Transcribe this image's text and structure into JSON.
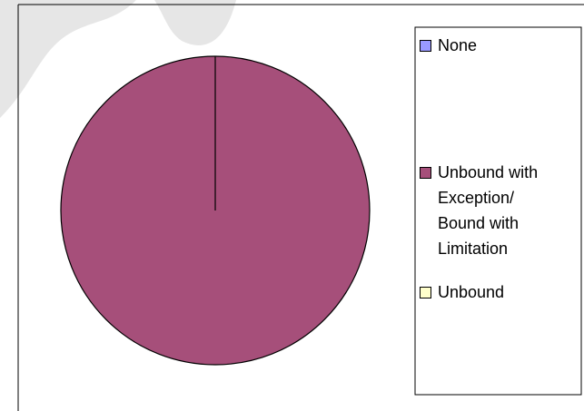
{
  "chart_data": {
    "type": "pie",
    "categories": [
      "None",
      "Unbound with Exception/ Bound with Limitation",
      "Unbound"
    ],
    "values": [
      0,
      100,
      0
    ],
    "colors": [
      "#9999ff",
      "#a64f7a",
      "#ffffcc"
    ]
  }
}
